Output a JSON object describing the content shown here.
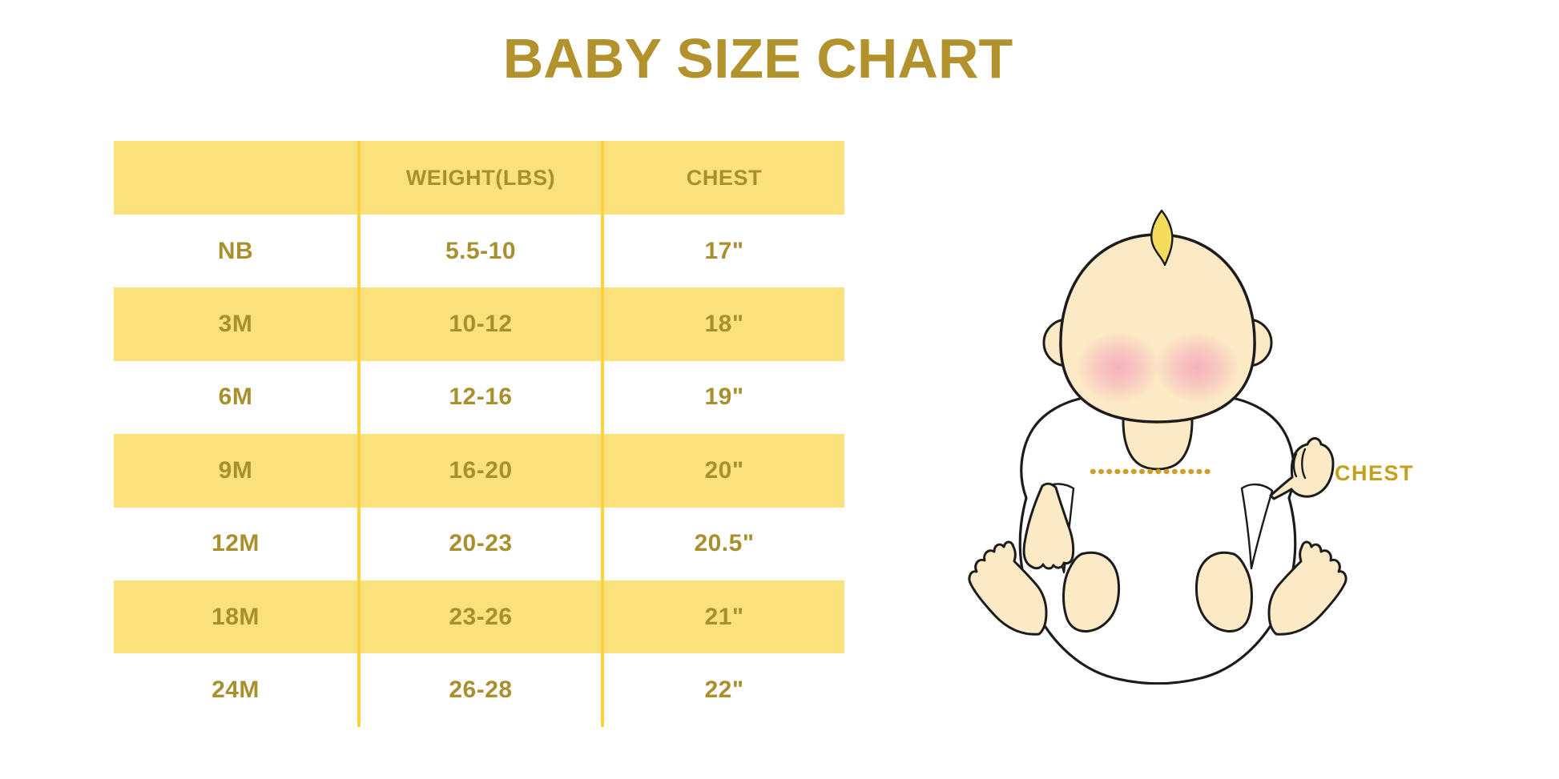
{
  "page": {
    "title": "BABY SIZE CHART",
    "background": "#FFFFFF"
  },
  "table": {
    "columns": [
      "",
      "WEIGHT(LBS)",
      "CHEST"
    ],
    "rows": [
      {
        "size": "NB",
        "weight": "5.5-10",
        "chest": "17\""
      },
      {
        "size": "3M",
        "weight": "10-12",
        "chest": "18\""
      },
      {
        "size": "6M",
        "weight": "12-16",
        "chest": "19\""
      },
      {
        "size": "9M",
        "weight": "16-20",
        "chest": "20\""
      },
      {
        "size": "12M",
        "weight": "20-23",
        "chest": "20.5\""
      },
      {
        "size": "18M",
        "weight": "23-26",
        "chest": "21\""
      },
      {
        "size": "24M",
        "weight": "26-28",
        "chest": "22\""
      }
    ],
    "colors": {
      "row_yellow": "#FAE17C",
      "divider": "#FCD23F",
      "cell_text": "#A9902F",
      "title_text": "#B2922C"
    }
  },
  "illustration": {
    "chest_label": "CHEST",
    "colors": {
      "label": "#C4A01F",
      "dotted_line": "#C9A227",
      "skin": "#FCE9C5",
      "blush": "#F3A7BC",
      "hair": "#F5DC5C",
      "outline": "#1C1C1C",
      "shirt": "#FFFFFF"
    }
  }
}
